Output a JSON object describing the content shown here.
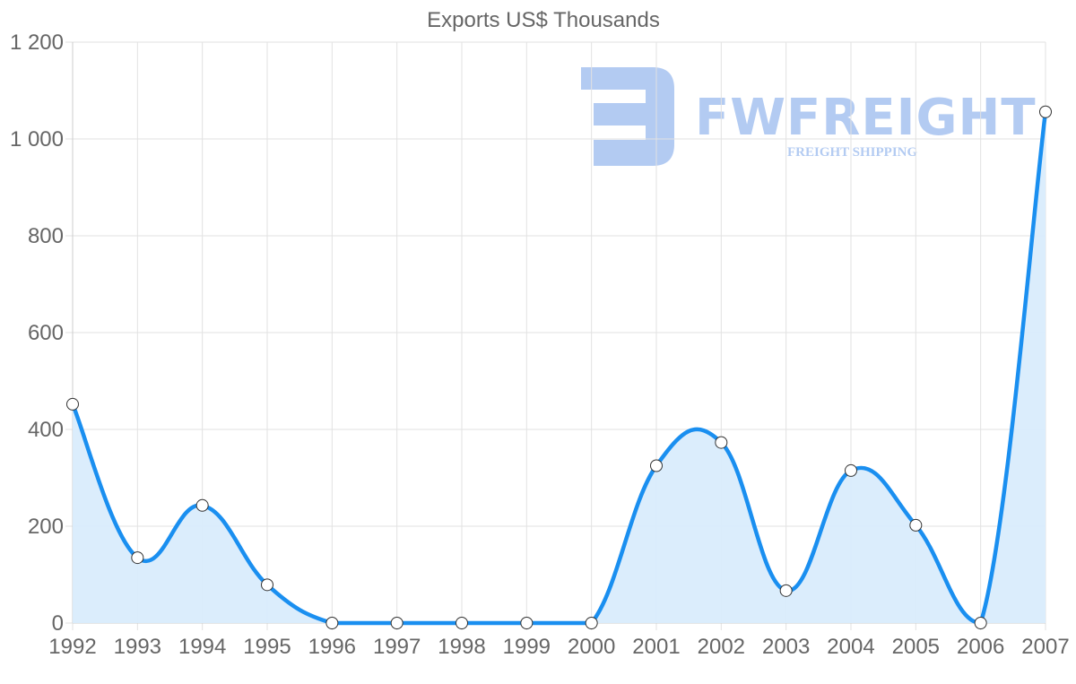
{
  "chart_data": {
    "type": "area",
    "title": "Exports US$ Thousands",
    "xlabel": "",
    "ylabel": "",
    "categories": [
      "1992",
      "1993",
      "1994",
      "1995",
      "1996",
      "1997",
      "1998",
      "1999",
      "2000",
      "2001",
      "2002",
      "2003",
      "2004",
      "2005",
      "2006",
      "2007"
    ],
    "series": [
      {
        "name": "Exports US$ Thousands",
        "values": [
          452,
          135,
          243,
          79,
          0,
          0,
          0,
          0,
          0,
          325,
          373,
          67,
          315,
          202,
          0,
          1056
        ]
      }
    ],
    "ylim": [
      0,
      1200
    ],
    "yticks": [
      0,
      200,
      400,
      600,
      800,
      1000,
      1200
    ],
    "ytick_labels": [
      "0",
      "200",
      "400",
      "600",
      "800",
      "1 000",
      "1 200"
    ],
    "grid": true,
    "legend": "none",
    "colors": {
      "line": "#1a8ff0",
      "fill": "#d9ecfc",
      "grid": "#e2e2e2",
      "text": "#666666",
      "point_fill": "#ffffff",
      "point_stroke": "#333333"
    }
  },
  "watermark": {
    "brand": "FWFREIGHT",
    "tagline": "FREIGHT SHIPPING",
    "color": "#b3cbf2"
  }
}
